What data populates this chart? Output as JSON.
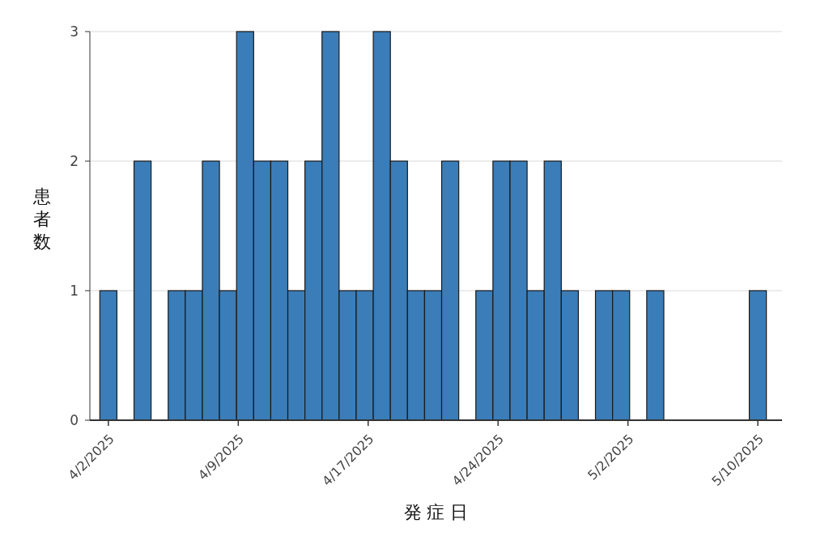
{
  "chart_data": {
    "type": "bar",
    "xlabel": "発 症 日",
    "ylabel": "患者数",
    "x": [
      "2025-04-02",
      "2025-04-04",
      "2025-04-06",
      "2025-04-07",
      "2025-04-08",
      "2025-04-09",
      "2025-04-10",
      "2025-04-11",
      "2025-04-12",
      "2025-04-13",
      "2025-04-14",
      "2025-04-15",
      "2025-04-16",
      "2025-04-17",
      "2025-04-18",
      "2025-04-19",
      "2025-04-20",
      "2025-04-21",
      "2025-04-22",
      "2025-04-24",
      "2025-04-25",
      "2025-04-26",
      "2025-04-27",
      "2025-04-28",
      "2025-04-29",
      "2025-05-01",
      "2025-05-02",
      "2025-05-04",
      "2025-05-10"
    ],
    "values": [
      1,
      2,
      1,
      1,
      2,
      1,
      3,
      2,
      2,
      1,
      2,
      3,
      1,
      1,
      3,
      2,
      1,
      1,
      2,
      1,
      2,
      2,
      1,
      2,
      1,
      1,
      1,
      1,
      1
    ],
    "color": "#3a7db8",
    "xlim": [
      "2025-03-31T22:00",
      "2025-05-11T10:00"
    ],
    "xticks": [
      {
        "value": "2025-04-02T00:00",
        "label": "4/2/2025"
      },
      {
        "value": "2025-04-09T14:24",
        "label": "4/9/2025"
      },
      {
        "value": "2025-04-17T04:48",
        "label": "4/17/2025"
      },
      {
        "value": "2025-04-24T19:12",
        "label": "4/24/2025"
      },
      {
        "value": "2025-05-02T09:36",
        "label": "5/2/2025"
      },
      {
        "value": "2025-05-10T00:00",
        "label": "5/10/2025"
      }
    ],
    "ylim": [
      0,
      3
    ],
    "yticks": [
      0,
      1,
      2,
      3
    ],
    "grid": "y"
  }
}
